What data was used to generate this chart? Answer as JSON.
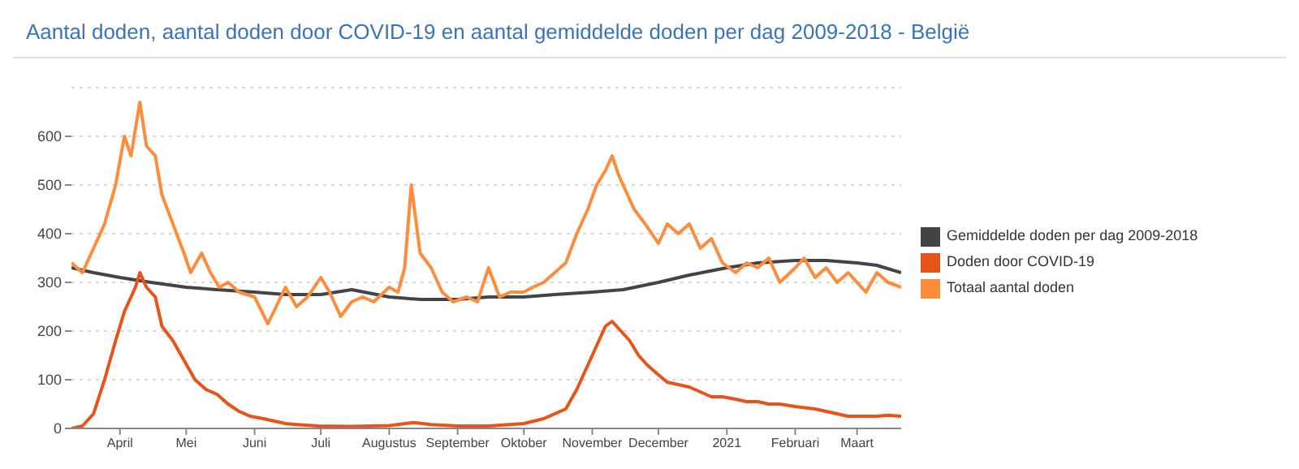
{
  "chart_data": {
    "type": "line",
    "title": "Aantal doden, aantal doden door COVID-19 en aantal gemiddelde doden per dag 2009-2018 - België",
    "legend": "right",
    "grid": "y",
    "marker": "none",
    "line_style": "solid",
    "xlim": [
      "2020-03-10",
      "2021-03-21"
    ],
    "xticks": [
      {
        "value": "2020-04-01",
        "label": "April"
      },
      {
        "value": "2020-05-01",
        "label": "Mei"
      },
      {
        "value": "2020-06-01",
        "label": "Juni"
      },
      {
        "value": "2020-07-01",
        "label": "Juli"
      },
      {
        "value": "2020-08-01",
        "label": "Augustus"
      },
      {
        "value": "2020-09-01",
        "label": "September"
      },
      {
        "value": "2020-10-01",
        "label": "Oktober"
      },
      {
        "value": "2020-11-01",
        "label": "November"
      },
      {
        "value": "2020-12-01",
        "label": "December"
      },
      {
        "value": "2021-01-01",
        "label": "2021"
      },
      {
        "value": "2021-02-01",
        "label": "Februari"
      },
      {
        "value": "2021-03-01",
        "label": "Maart"
      }
    ],
    "ylim": [
      0,
      700
    ],
    "yticks": [
      0,
      100,
      200,
      300,
      400,
      500,
      600
    ],
    "series": [
      {
        "name": "Gemiddelde doden per dag 2009-2018",
        "color": "#434348",
        "x": [
          "2020-03-10",
          "2020-03-20",
          "2020-04-01",
          "2020-04-15",
          "2020-05-01",
          "2020-05-15",
          "2020-06-01",
          "2020-06-15",
          "2020-07-01",
          "2020-07-15",
          "2020-08-01",
          "2020-08-15",
          "2020-09-01",
          "2020-09-15",
          "2020-10-01",
          "2020-10-15",
          "2020-11-01",
          "2020-11-15",
          "2020-12-01",
          "2020-12-15",
          "2021-01-01",
          "2021-01-15",
          "2021-02-01",
          "2021-02-15",
          "2021-03-01",
          "2021-03-10",
          "2021-03-21"
        ],
        "values": [
          330,
          320,
          310,
          300,
          290,
          285,
          280,
          275,
          275,
          285,
          270,
          265,
          265,
          270,
          270,
          275,
          280,
          285,
          300,
          315,
          330,
          340,
          345,
          345,
          340,
          335,
          320
        ]
      },
      {
        "name": "Doden door COVID-19",
        "color": "#e8531a",
        "x": [
          "2020-03-10",
          "2020-03-15",
          "2020-03-20",
          "2020-03-25",
          "2020-03-30",
          "2020-04-03",
          "2020-04-08",
          "2020-04-10",
          "2020-04-13",
          "2020-04-17",
          "2020-04-20",
          "2020-04-25",
          "2020-04-30",
          "2020-05-05",
          "2020-05-10",
          "2020-05-15",
          "2020-05-20",
          "2020-05-25",
          "2020-05-30",
          "2020-06-05",
          "2020-06-10",
          "2020-06-15",
          "2020-06-20",
          "2020-06-30",
          "2020-07-15",
          "2020-08-01",
          "2020-08-12",
          "2020-08-20",
          "2020-09-01",
          "2020-09-15",
          "2020-10-01",
          "2020-10-10",
          "2020-10-20",
          "2020-10-25",
          "2020-10-30",
          "2020-11-03",
          "2020-11-07",
          "2020-11-10",
          "2020-11-14",
          "2020-11-18",
          "2020-11-22",
          "2020-11-26",
          "2020-12-01",
          "2020-12-05",
          "2020-12-10",
          "2020-12-15",
          "2020-12-20",
          "2020-12-25",
          "2020-12-30",
          "2021-01-05",
          "2021-01-10",
          "2021-01-15",
          "2021-01-20",
          "2021-01-25",
          "2021-02-01",
          "2021-02-10",
          "2021-02-15",
          "2021-02-20",
          "2021-02-25",
          "2021-03-01",
          "2021-03-10",
          "2021-03-15",
          "2021-03-21"
        ],
        "values": [
          0,
          5,
          30,
          100,
          180,
          240,
          290,
          320,
          290,
          270,
          210,
          180,
          140,
          100,
          80,
          70,
          50,
          35,
          25,
          20,
          15,
          10,
          8,
          5,
          4,
          6,
          12,
          8,
          5,
          5,
          10,
          20,
          40,
          80,
          130,
          170,
          210,
          220,
          200,
          180,
          150,
          130,
          110,
          95,
          90,
          85,
          75,
          65,
          65,
          60,
          55,
          55,
          50,
          50,
          45,
          40,
          35,
          30,
          25,
          25,
          25,
          27,
          25
        ]
      },
      {
        "name": "Totaal aantal doden",
        "color": "#fd8c3c",
        "x": [
          "2020-03-10",
          "2020-03-15",
          "2020-03-20",
          "2020-03-25",
          "2020-03-30",
          "2020-04-03",
          "2020-04-06",
          "2020-04-10",
          "2020-04-13",
          "2020-04-17",
          "2020-04-20",
          "2020-04-25",
          "2020-04-30",
          "2020-05-03",
          "2020-05-08",
          "2020-05-12",
          "2020-05-16",
          "2020-05-20",
          "2020-05-25",
          "2020-06-01",
          "2020-06-07",
          "2020-06-15",
          "2020-06-20",
          "2020-06-25",
          "2020-07-01",
          "2020-07-05",
          "2020-07-10",
          "2020-07-15",
          "2020-07-20",
          "2020-07-25",
          "2020-08-01",
          "2020-08-05",
          "2020-08-08",
          "2020-08-11",
          "2020-08-15",
          "2020-08-20",
          "2020-08-25",
          "2020-08-30",
          "2020-09-05",
          "2020-09-10",
          "2020-09-15",
          "2020-09-20",
          "2020-09-25",
          "2020-10-01",
          "2020-10-05",
          "2020-10-10",
          "2020-10-15",
          "2020-10-20",
          "2020-10-25",
          "2020-10-30",
          "2020-11-03",
          "2020-11-07",
          "2020-11-10",
          "2020-11-13",
          "2020-11-17",
          "2020-11-20",
          "2020-11-25",
          "2020-12-01",
          "2020-12-05",
          "2020-12-10",
          "2020-12-15",
          "2020-12-20",
          "2020-12-25",
          "2020-12-30",
          "2021-01-05",
          "2021-01-10",
          "2021-01-15",
          "2021-01-20",
          "2021-01-25",
          "2021-02-01",
          "2021-02-05",
          "2021-02-10",
          "2021-02-15",
          "2021-02-20",
          "2021-02-25",
          "2021-03-01",
          "2021-03-05",
          "2021-03-10",
          "2021-03-15",
          "2021-03-21"
        ],
        "values": [
          340,
          320,
          370,
          420,
          500,
          600,
          560,
          670,
          580,
          560,
          480,
          420,
          360,
          320,
          360,
          320,
          290,
          300,
          280,
          270,
          215,
          290,
          250,
          270,
          310,
          280,
          230,
          260,
          270,
          260,
          290,
          280,
          330,
          500,
          360,
          330,
          280,
          260,
          270,
          260,
          330,
          270,
          280,
          280,
          290,
          300,
          320,
          340,
          400,
          450,
          500,
          530,
          560,
          520,
          480,
          450,
          420,
          380,
          420,
          400,
          420,
          370,
          390,
          340,
          320,
          340,
          330,
          350,
          300,
          330,
          350,
          310,
          330,
          300,
          320,
          300,
          280,
          320,
          300,
          290
        ]
      }
    ]
  }
}
